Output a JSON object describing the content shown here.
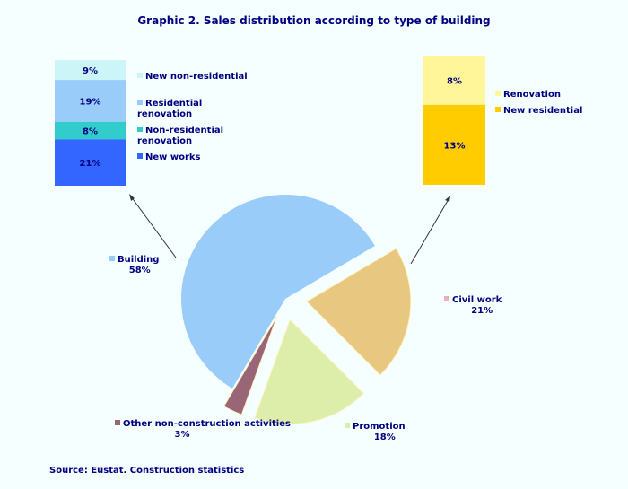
{
  "chart_data": {
    "type": "pie",
    "title": "Graphic 2. Sales distribution according to type of building",
    "source": "Source: Eustat. Construction statistics",
    "slices": [
      {
        "label": "Building",
        "value": 58,
        "value_label": "58%",
        "color": "#99ccf8"
      },
      {
        "label": "Civil work",
        "value": 21,
        "value_label": "21%",
        "color": "#e8c880"
      },
      {
        "label": "Promotion",
        "value": 18,
        "value_label": "18%",
        "color": "#ddeeaa"
      },
      {
        "label": "Other non-construction activities",
        "value": 3,
        "value_label": "3%",
        "color": "#996677"
      }
    ],
    "breakdowns": [
      {
        "parent": "Building",
        "segments": [
          {
            "label": "New non-residential",
            "value": 9,
            "value_label": "9%",
            "color": "#ccf5f8"
          },
          {
            "label": "Residential renovation",
            "value": 19,
            "value_label": "19%",
            "color": "#99ccf8"
          },
          {
            "label": "Non-residential renovation",
            "value": 8,
            "value_label": "8%",
            "color": "#33cccc"
          },
          {
            "label": "New works",
            "value": 21,
            "value_label": "21%",
            "color": "#3366ff"
          }
        ]
      },
      {
        "parent": "Civil work",
        "segments": [
          {
            "label": "Renovation",
            "value": 8,
            "value_label": "8%",
            "color": "#fff599"
          },
          {
            "label": "New residential",
            "value": 13,
            "value_label": "13%",
            "color": "#ffcc00"
          }
        ]
      }
    ]
  }
}
